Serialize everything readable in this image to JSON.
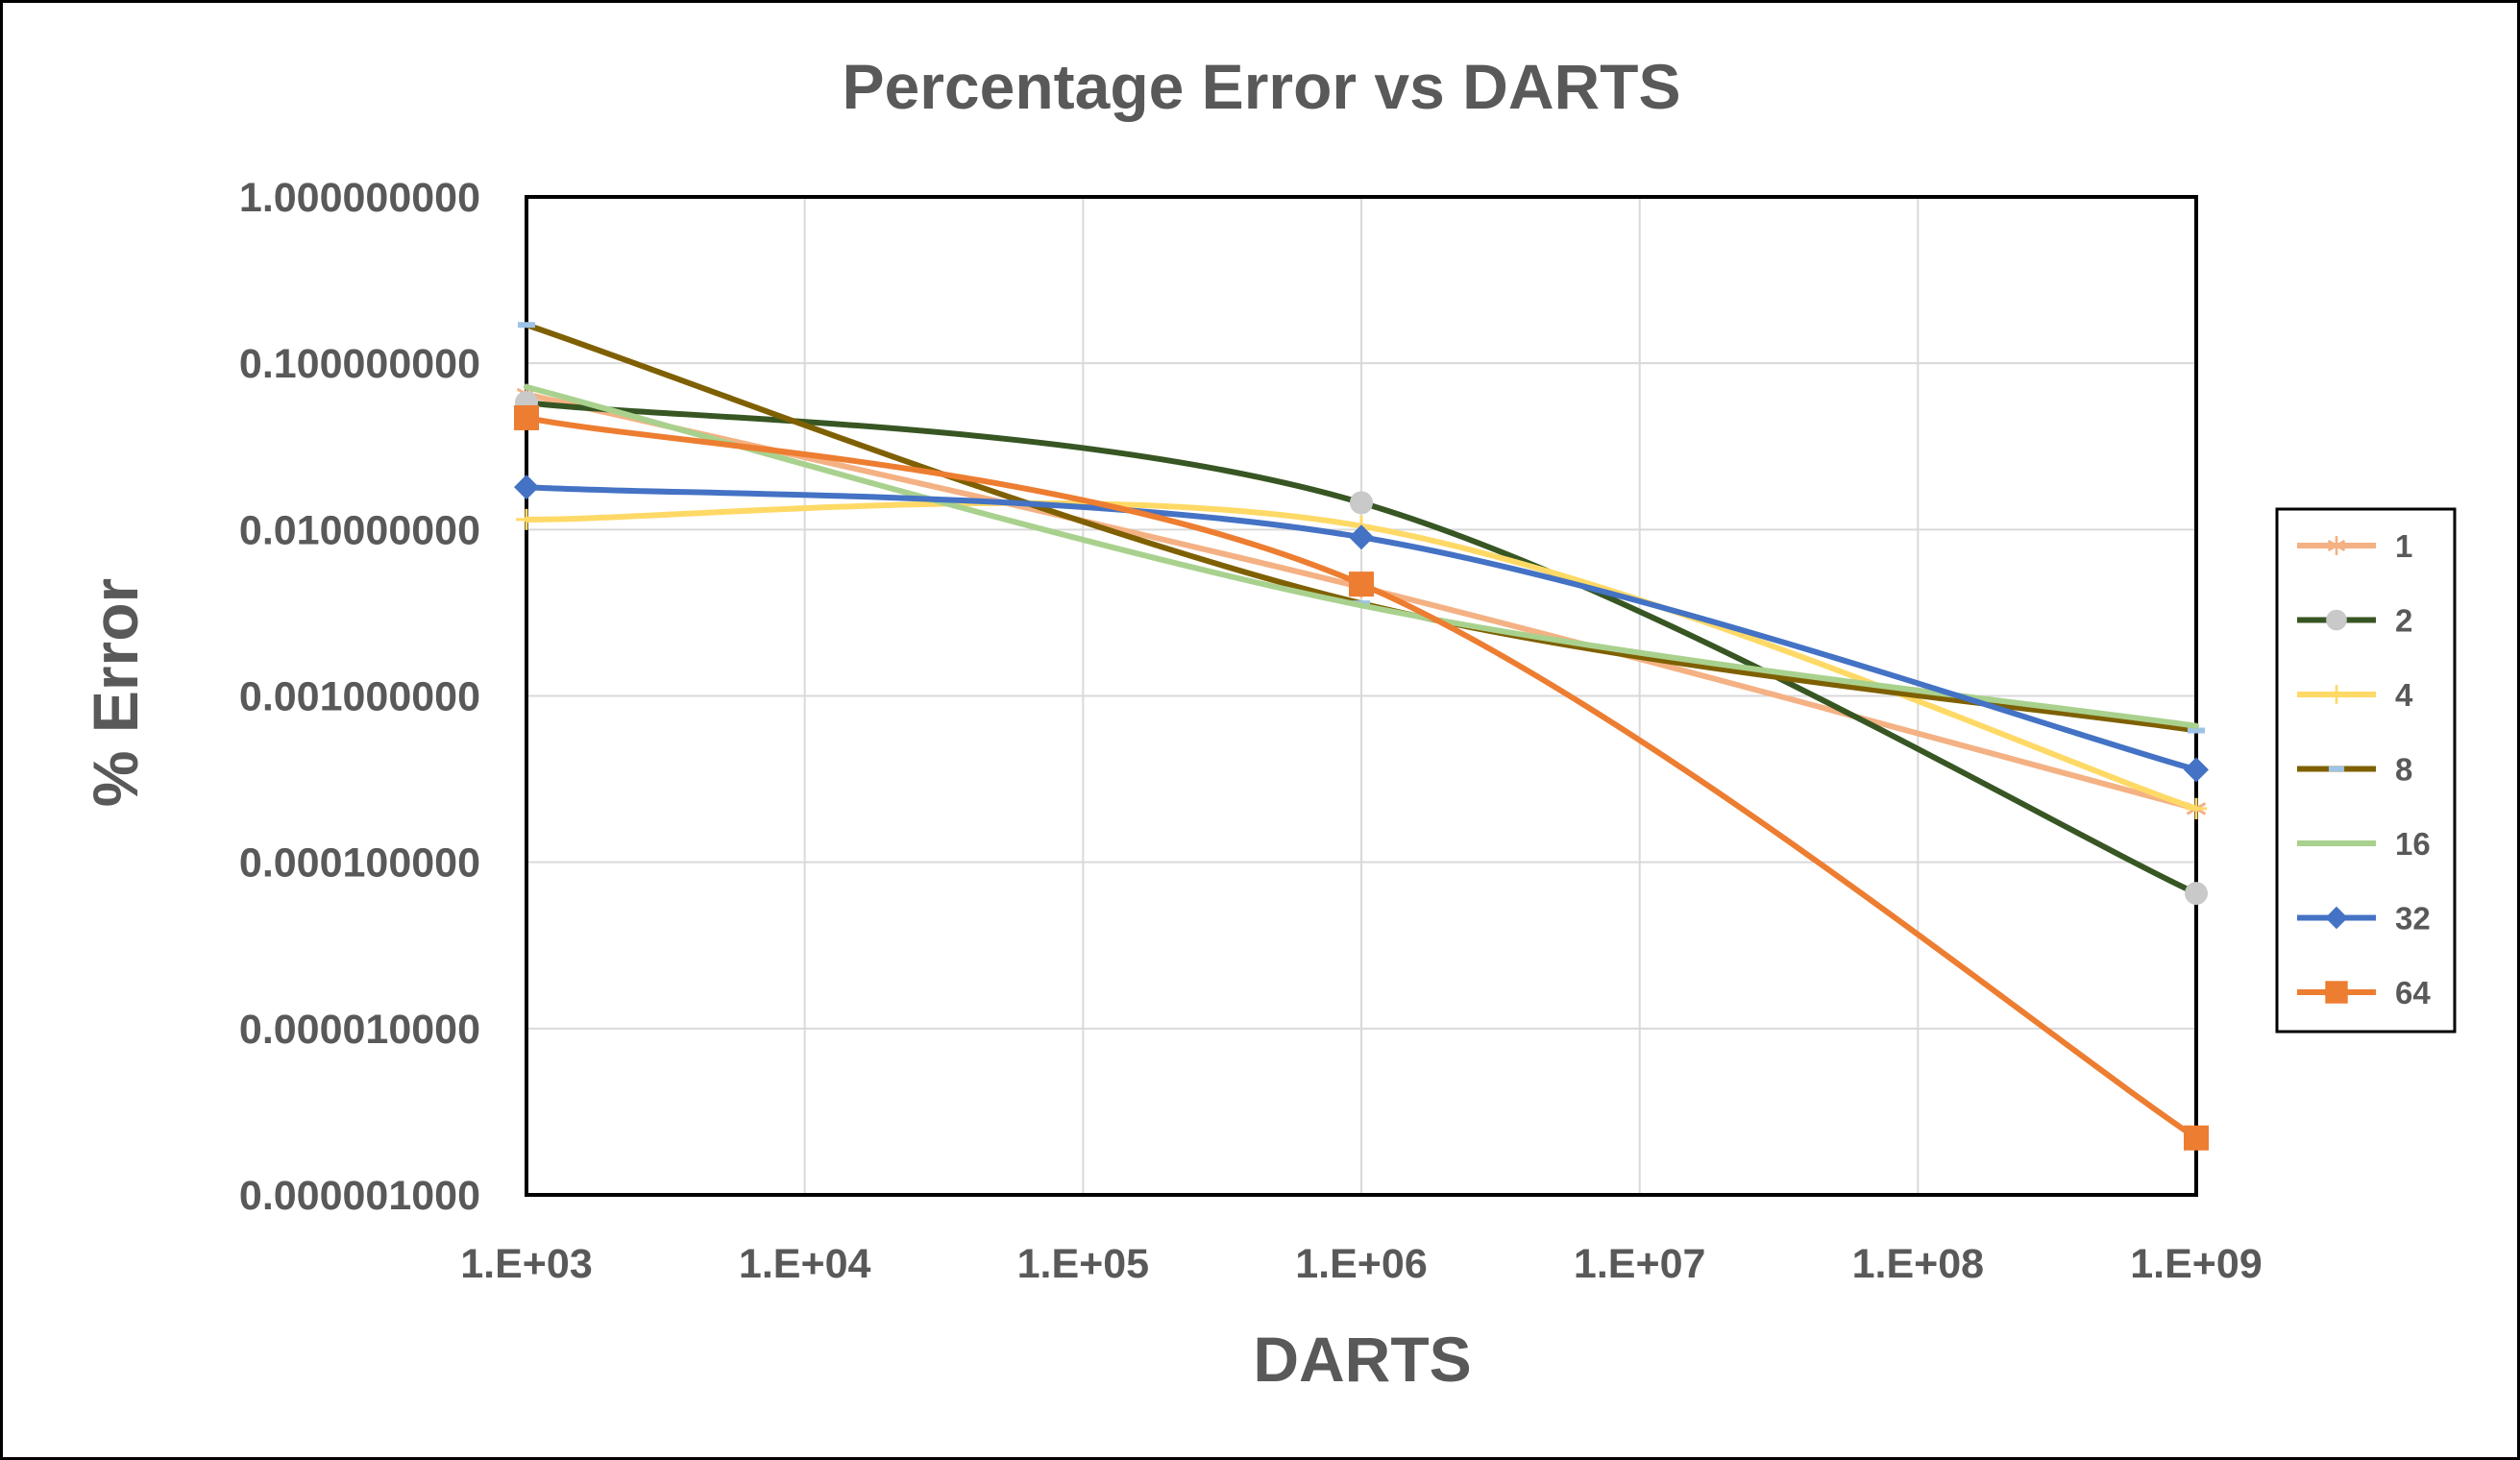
{
  "chart_data": {
    "type": "line",
    "title": "Percentage Error vs DARTS",
    "xlabel": "DARTS",
    "ylabel": "% Error",
    "x_scale": "log",
    "y_scale": "log",
    "xlim": [
      1000,
      1000000000
    ],
    "ylim": [
      1e-06,
      1
    ],
    "x_ticks": [
      "1.E+03",
      "1.E+04",
      "1.E+05",
      "1.E+06",
      "1.E+07",
      "1.E+08",
      "1.E+09"
    ],
    "y_ticks": [
      "1.000000000",
      "0.100000000",
      "0.010000000",
      "0.001000000",
      "0.000100000",
      "0.000010000",
      "0.000001000"
    ],
    "grid": true,
    "legend_position": "right",
    "smooth": true,
    "x": [
      1000,
      1000000,
      1000000000
    ],
    "series": [
      {
        "name": "1",
        "values": [
          0.065,
          0.0045,
          0.00021
        ],
        "color": "#F4B183",
        "marker": "star"
      },
      {
        "name": "2",
        "values": [
          0.058,
          0.0145,
          6.5e-05
        ],
        "color": "#375623",
        "marker": "circle",
        "marker_color": "#C9C9C9"
      },
      {
        "name": "4",
        "values": [
          0.0115,
          0.0105,
          0.00021
        ],
        "color": "#FFD966",
        "marker": "plus"
      },
      {
        "name": "8",
        "values": [
          0.17,
          0.0036,
          0.00062
        ],
        "color": "#7F6000",
        "marker": "dash",
        "marker_color": "#9DC3E6"
      },
      {
        "name": "16",
        "values": [
          0.072,
          0.0035,
          0.00066
        ],
        "color": "#A9D18E",
        "marker": "none"
      },
      {
        "name": "32",
        "values": [
          0.018,
          0.009,
          0.00036
        ],
        "color": "#4472C4",
        "marker": "diamond"
      },
      {
        "name": "64",
        "values": [
          0.047,
          0.0047,
          2.2e-06
        ],
        "color": "#ED7D31",
        "marker": "square"
      }
    ]
  }
}
